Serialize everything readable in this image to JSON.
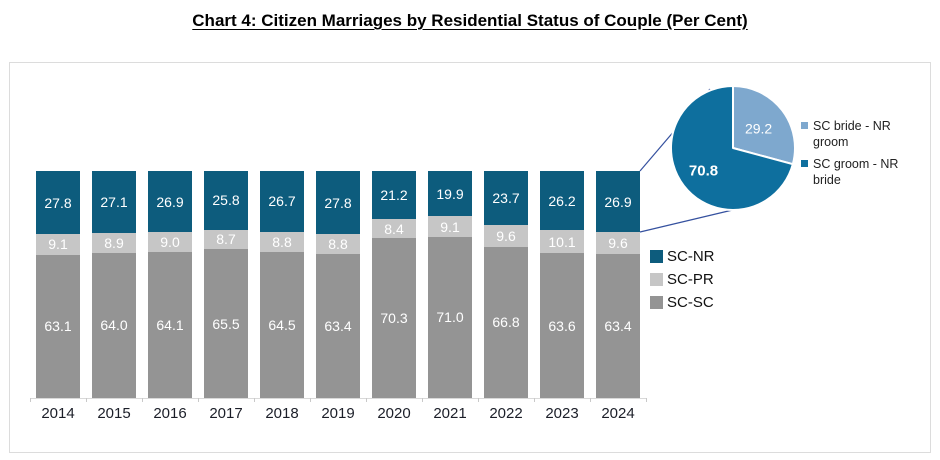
{
  "title": "Chart 4: Citizen Marriages by Residential Status of Couple (Per Cent)",
  "colors": {
    "sc_nr": "#0d5c7d",
    "sc_pr": "#c6c6c6",
    "sc_sc": "#949494",
    "pie_bride": "#7ea8ce",
    "pie_groom": "#0e6f9e",
    "callout_line": "#35519f",
    "axis": "#d9d9d9",
    "panel_border": "#dcdcdc",
    "label_text": "#1b1e28",
    "value_text": "#ffffff"
  },
  "chart_data": [
    {
      "type": "bar",
      "stacked": "percent",
      "categories": [
        "2014",
        "2015",
        "2016",
        "2017",
        "2018",
        "2019",
        "2020",
        "2021",
        "2022",
        "2023",
        "2024"
      ],
      "series": [
        {
          "name": "SC-NR",
          "color": "#0d5c7d",
          "values": [
            27.8,
            27.1,
            26.9,
            25.8,
            26.7,
            27.8,
            21.2,
            19.9,
            23.7,
            26.2,
            26.9
          ]
        },
        {
          "name": "SC-PR",
          "color": "#c6c6c6",
          "values": [
            9.1,
            8.9,
            9.0,
            8.7,
            8.8,
            8.8,
            8.4,
            9.1,
            9.6,
            10.1,
            9.6
          ]
        },
        {
          "name": "SC-SC",
          "color": "#949494",
          "values": [
            63.1,
            64.0,
            64.1,
            65.5,
            64.5,
            63.4,
            70.3,
            71.0,
            66.8,
            63.6,
            63.4
          ]
        }
      ],
      "value_labels": true,
      "legend": [
        "SC-NR",
        "SC-PR",
        "SC-SC"
      ],
      "legend_position": "right",
      "ylim": [
        0,
        100
      ],
      "grid": false
    },
    {
      "type": "pie",
      "slices": [
        {
          "label": "SC bride - NR groom",
          "value": 29.2,
          "color": "#7ea8ce"
        },
        {
          "label": "SC groom - NR bride",
          "value": 70.8,
          "color": "#0e6f9e"
        }
      ],
      "start_angle_deg": -90,
      "direction": "clockwise",
      "legend_position": "right",
      "note": "detail of 2024 SC-NR segment"
    }
  ]
}
